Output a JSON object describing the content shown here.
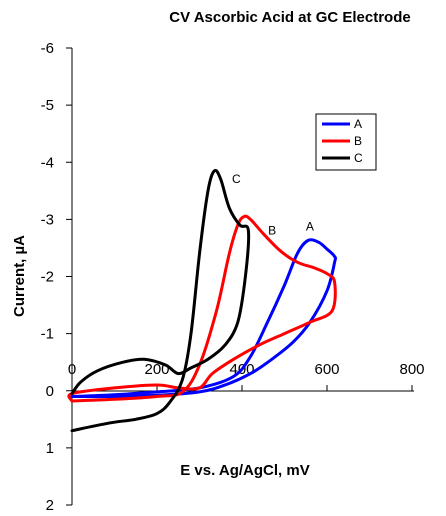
{
  "chart_data": {
    "type": "line",
    "title": "CV Ascorbic Acid at GC Electrode",
    "xlabel": "E vs. Ag/AgCl, mV",
    "ylabel": "Current, µA",
    "xlim": [
      0,
      800
    ],
    "ylim": [
      -6,
      2
    ],
    "y_axis_inverted": true,
    "x_ticks": [
      "0",
      "200",
      "400",
      "600",
      "800"
    ],
    "y_ticks": [
      "-6",
      "-5",
      "-4",
      "-3",
      "-2",
      "-1",
      "0",
      "1",
      "2"
    ],
    "grid": false,
    "legend": "top-right",
    "series": [
      {
        "name": "A",
        "color": "#0000ff",
        "curve_label": "A",
        "points": [
          [
            0,
            0.1
          ],
          [
            100,
            0.07
          ],
          [
            200,
            0.02
          ],
          [
            300,
            -0.05
          ],
          [
            380,
            -0.25
          ],
          [
            420,
            -0.6
          ],
          [
            460,
            -1.2
          ],
          [
            500,
            -1.85
          ],
          [
            530,
            -2.4
          ],
          [
            555,
            -2.63
          ],
          [
            580,
            -2.6
          ],
          [
            600,
            -2.48
          ],
          [
            618,
            -2.35
          ],
          [
            618,
            -2.25
          ],
          [
            600,
            -1.75
          ],
          [
            560,
            -1.2
          ],
          [
            520,
            -0.85
          ],
          [
            470,
            -0.55
          ],
          [
            420,
            -0.3
          ],
          [
            360,
            -0.1
          ],
          [
            300,
            0.02
          ],
          [
            200,
            0.08
          ],
          [
            100,
            0.1
          ],
          [
            0,
            0.1
          ]
        ]
      },
      {
        "name": "B",
        "color": "#ff0000",
        "curve_label": "B",
        "points": [
          [
            0,
            0.18
          ],
          [
            100,
            0.15
          ],
          [
            200,
            0.1
          ],
          [
            260,
            0.02
          ],
          [
            300,
            -0.45
          ],
          [
            340,
            -1.4
          ],
          [
            370,
            -2.4
          ],
          [
            390,
            -2.9
          ],
          [
            405,
            -3.05
          ],
          [
            420,
            -3.0
          ],
          [
            450,
            -2.75
          ],
          [
            490,
            -2.45
          ],
          [
            530,
            -2.25
          ],
          [
            570,
            -2.15
          ],
          [
            600,
            -2.05
          ],
          [
            618,
            -1.9
          ],
          [
            612,
            -1.4
          ],
          [
            560,
            -1.2
          ],
          [
            500,
            -1.0
          ],
          [
            440,
            -0.8
          ],
          [
            380,
            -0.55
          ],
          [
            330,
            -0.3
          ],
          [
            300,
            -0.05
          ],
          [
            250,
            -0.05
          ],
          [
            200,
            -0.1
          ],
          [
            100,
            -0.05
          ],
          [
            0,
            0.05
          ],
          [
            0,
            0.18
          ]
        ]
      },
      {
        "name": "C",
        "color": "#000000",
        "curve_label": "C",
        "points": [
          [
            0,
            0.7
          ],
          [
            50,
            0.62
          ],
          [
            100,
            0.55
          ],
          [
            150,
            0.5
          ],
          [
            200,
            0.4
          ],
          [
            230,
            0.2
          ],
          [
            260,
            -0.2
          ],
          [
            280,
            -1.0
          ],
          [
            300,
            -2.4
          ],
          [
            320,
            -3.5
          ],
          [
            335,
            -3.85
          ],
          [
            350,
            -3.7
          ],
          [
            370,
            -3.2
          ],
          [
            395,
            -2.9
          ],
          [
            415,
            -2.8
          ],
          [
            408,
            -2.0
          ],
          [
            390,
            -1.2
          ],
          [
            360,
            -0.8
          ],
          [
            320,
            -0.55
          ],
          [
            280,
            -0.4
          ],
          [
            250,
            -0.3
          ],
          [
            220,
            -0.45
          ],
          [
            170,
            -0.55
          ],
          [
            120,
            -0.5
          ],
          [
            60,
            -0.35
          ],
          [
            20,
            -0.15
          ],
          [
            0,
            0.05
          ]
        ]
      }
    ]
  }
}
